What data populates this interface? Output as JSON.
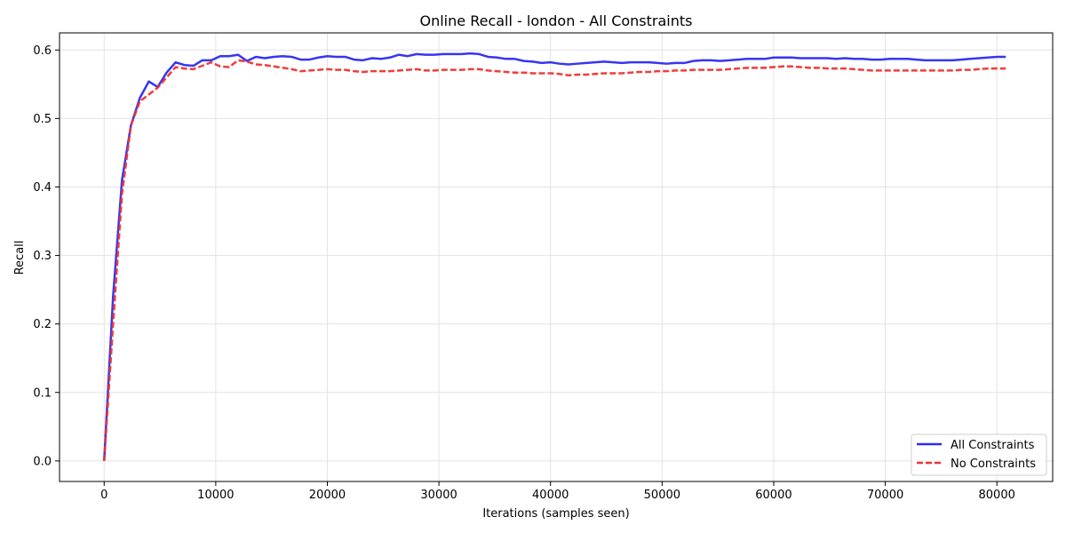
{
  "chart_data": {
    "type": "line",
    "title": "Online Recall - london - All Constraints",
    "xlabel": "Iterations (samples seen)",
    "ylabel": "Recall",
    "xlim": [
      -4000,
      85000
    ],
    "ylim": [
      -0.03,
      0.625
    ],
    "x_ticks": [
      0,
      10000,
      20000,
      30000,
      40000,
      50000,
      60000,
      70000,
      80000
    ],
    "x_tick_labels": [
      "0",
      "10000",
      "20000",
      "30000",
      "40000",
      "50000",
      "60000",
      "70000",
      "80000"
    ],
    "y_ticks": [
      0.0,
      0.1,
      0.2,
      0.3,
      0.4,
      0.5,
      0.6
    ],
    "y_tick_labels": [
      "0.0",
      "0.1",
      "0.2",
      "0.3",
      "0.4",
      "0.5",
      "0.6"
    ],
    "grid": true,
    "legend_position": "bottom-right",
    "series": [
      {
        "name": "All Constraints",
        "color": "#2b2bf0",
        "style": "solid",
        "points": [
          [
            0,
            0.0
          ],
          [
            800,
            0.24
          ],
          [
            1600,
            0.41
          ],
          [
            2400,
            0.49
          ],
          [
            3200,
            0.53
          ],
          [
            4000,
            0.554
          ],
          [
            4800,
            0.546
          ],
          [
            5600,
            0.567
          ],
          [
            6400,
            0.582
          ],
          [
            7200,
            0.578
          ],
          [
            8000,
            0.577
          ],
          [
            8800,
            0.585
          ],
          [
            9600,
            0.585
          ],
          [
            10400,
            0.591
          ],
          [
            11200,
            0.591
          ],
          [
            12000,
            0.593
          ],
          [
            12800,
            0.584
          ],
          [
            13600,
            0.59
          ],
          [
            14400,
            0.588
          ],
          [
            15200,
            0.59
          ],
          [
            16000,
            0.591
          ],
          [
            16800,
            0.59
          ],
          [
            17600,
            0.586
          ],
          [
            18400,
            0.586
          ],
          [
            19200,
            0.589
          ],
          [
            20000,
            0.591
          ],
          [
            20800,
            0.59
          ],
          [
            21600,
            0.59
          ],
          [
            22400,
            0.586
          ],
          [
            23200,
            0.585
          ],
          [
            24000,
            0.588
          ],
          [
            24800,
            0.587
          ],
          [
            25600,
            0.589
          ],
          [
            26400,
            0.593
          ],
          [
            27200,
            0.591
          ],
          [
            28000,
            0.594
          ],
          [
            28800,
            0.593
          ],
          [
            29600,
            0.593
          ],
          [
            30400,
            0.594
          ],
          [
            31200,
            0.594
          ],
          [
            32000,
            0.594
          ],
          [
            32800,
            0.595
          ],
          [
            33600,
            0.594
          ],
          [
            34400,
            0.59
          ],
          [
            35200,
            0.589
          ],
          [
            36000,
            0.587
          ],
          [
            36800,
            0.587
          ],
          [
            37600,
            0.584
          ],
          [
            38400,
            0.583
          ],
          [
            39200,
            0.581
          ],
          [
            40000,
            0.582
          ],
          [
            40800,
            0.58
          ],
          [
            41600,
            0.579
          ],
          [
            42400,
            0.58
          ],
          [
            43200,
            0.581
          ],
          [
            44000,
            0.582
          ],
          [
            44800,
            0.583
          ],
          [
            45600,
            0.582
          ],
          [
            46400,
            0.581
          ],
          [
            47200,
            0.582
          ],
          [
            48000,
            0.582
          ],
          [
            48800,
            0.582
          ],
          [
            49600,
            0.581
          ],
          [
            50400,
            0.58
          ],
          [
            51200,
            0.581
          ],
          [
            52000,
            0.581
          ],
          [
            52800,
            0.584
          ],
          [
            53600,
            0.585
          ],
          [
            54400,
            0.585
          ],
          [
            55200,
            0.584
          ],
          [
            56000,
            0.585
          ],
          [
            56800,
            0.586
          ],
          [
            57600,
            0.587
          ],
          [
            58400,
            0.587
          ],
          [
            59200,
            0.587
          ],
          [
            60000,
            0.589
          ],
          [
            60800,
            0.589
          ],
          [
            61600,
            0.589
          ],
          [
            62400,
            0.588
          ],
          [
            63200,
            0.588
          ],
          [
            64000,
            0.588
          ],
          [
            64800,
            0.588
          ],
          [
            65600,
            0.587
          ],
          [
            66400,
            0.588
          ],
          [
            67200,
            0.587
          ],
          [
            68000,
            0.587
          ],
          [
            68800,
            0.586
          ],
          [
            69600,
            0.586
          ],
          [
            70400,
            0.587
          ],
          [
            71200,
            0.587
          ],
          [
            72000,
            0.587
          ],
          [
            72800,
            0.586
          ],
          [
            73600,
            0.585
          ],
          [
            74400,
            0.585
          ],
          [
            75200,
            0.585
          ],
          [
            76000,
            0.585
          ],
          [
            76800,
            0.586
          ],
          [
            77600,
            0.587
          ],
          [
            78400,
            0.588
          ],
          [
            79200,
            0.589
          ],
          [
            80000,
            0.59
          ],
          [
            80800,
            0.59
          ]
        ]
      },
      {
        "name": "No Constraints",
        "color": "#ee3333",
        "style": "dashed",
        "points": [
          [
            0,
            0.0
          ],
          [
            800,
            0.2
          ],
          [
            1600,
            0.39
          ],
          [
            2400,
            0.49
          ],
          [
            3200,
            0.525
          ],
          [
            4000,
            0.535
          ],
          [
            4800,
            0.545
          ],
          [
            5600,
            0.56
          ],
          [
            6400,
            0.575
          ],
          [
            7200,
            0.573
          ],
          [
            8000,
            0.572
          ],
          [
            8800,
            0.577
          ],
          [
            9600,
            0.582
          ],
          [
            10400,
            0.576
          ],
          [
            11200,
            0.575
          ],
          [
            12000,
            0.585
          ],
          [
            12800,
            0.583
          ],
          [
            13600,
            0.579
          ],
          [
            14400,
            0.578
          ],
          [
            15200,
            0.576
          ],
          [
            16000,
            0.574
          ],
          [
            16800,
            0.572
          ],
          [
            17600,
            0.569
          ],
          [
            18400,
            0.57
          ],
          [
            19200,
            0.571
          ],
          [
            20000,
            0.572
          ],
          [
            20800,
            0.571
          ],
          [
            21600,
            0.571
          ],
          [
            22400,
            0.569
          ],
          [
            23200,
            0.568
          ],
          [
            24000,
            0.569
          ],
          [
            24800,
            0.569
          ],
          [
            25600,
            0.569
          ],
          [
            26400,
            0.57
          ],
          [
            27200,
            0.571
          ],
          [
            28000,
            0.572
          ],
          [
            28800,
            0.57
          ],
          [
            29600,
            0.57
          ],
          [
            30400,
            0.571
          ],
          [
            31200,
            0.571
          ],
          [
            32000,
            0.571
          ],
          [
            32800,
            0.572
          ],
          [
            33600,
            0.572
          ],
          [
            34400,
            0.57
          ],
          [
            35200,
            0.569
          ],
          [
            36000,
            0.568
          ],
          [
            36800,
            0.567
          ],
          [
            37600,
            0.567
          ],
          [
            38400,
            0.566
          ],
          [
            39200,
            0.566
          ],
          [
            40000,
            0.566
          ],
          [
            40800,
            0.565
          ],
          [
            41600,
            0.563
          ],
          [
            42400,
            0.564
          ],
          [
            43200,
            0.564
          ],
          [
            44000,
            0.565
          ],
          [
            44800,
            0.566
          ],
          [
            45600,
            0.566
          ],
          [
            46400,
            0.566
          ],
          [
            47200,
            0.567
          ],
          [
            48000,
            0.568
          ],
          [
            48800,
            0.568
          ],
          [
            49600,
            0.569
          ],
          [
            50400,
            0.569
          ],
          [
            51200,
            0.57
          ],
          [
            52000,
            0.57
          ],
          [
            52800,
            0.571
          ],
          [
            53600,
            0.571
          ],
          [
            54400,
            0.571
          ],
          [
            55200,
            0.571
          ],
          [
            56000,
            0.572
          ],
          [
            56800,
            0.573
          ],
          [
            57600,
            0.574
          ],
          [
            58400,
            0.574
          ],
          [
            59200,
            0.574
          ],
          [
            60000,
            0.575
          ],
          [
            60800,
            0.576
          ],
          [
            61600,
            0.576
          ],
          [
            62400,
            0.575
          ],
          [
            63200,
            0.574
          ],
          [
            64000,
            0.574
          ],
          [
            64800,
            0.573
          ],
          [
            65600,
            0.573
          ],
          [
            66400,
            0.573
          ],
          [
            67200,
            0.572
          ],
          [
            68000,
            0.571
          ],
          [
            68800,
            0.57
          ],
          [
            69600,
            0.57
          ],
          [
            70400,
            0.57
          ],
          [
            71200,
            0.57
          ],
          [
            72000,
            0.57
          ],
          [
            72800,
            0.57
          ],
          [
            73600,
            0.57
          ],
          [
            74400,
            0.57
          ],
          [
            75200,
            0.57
          ],
          [
            76000,
            0.57
          ],
          [
            76800,
            0.571
          ],
          [
            77600,
            0.571
          ],
          [
            78400,
            0.572
          ],
          [
            79200,
            0.573
          ],
          [
            80000,
            0.573
          ],
          [
            80800,
            0.573
          ]
        ]
      }
    ]
  }
}
